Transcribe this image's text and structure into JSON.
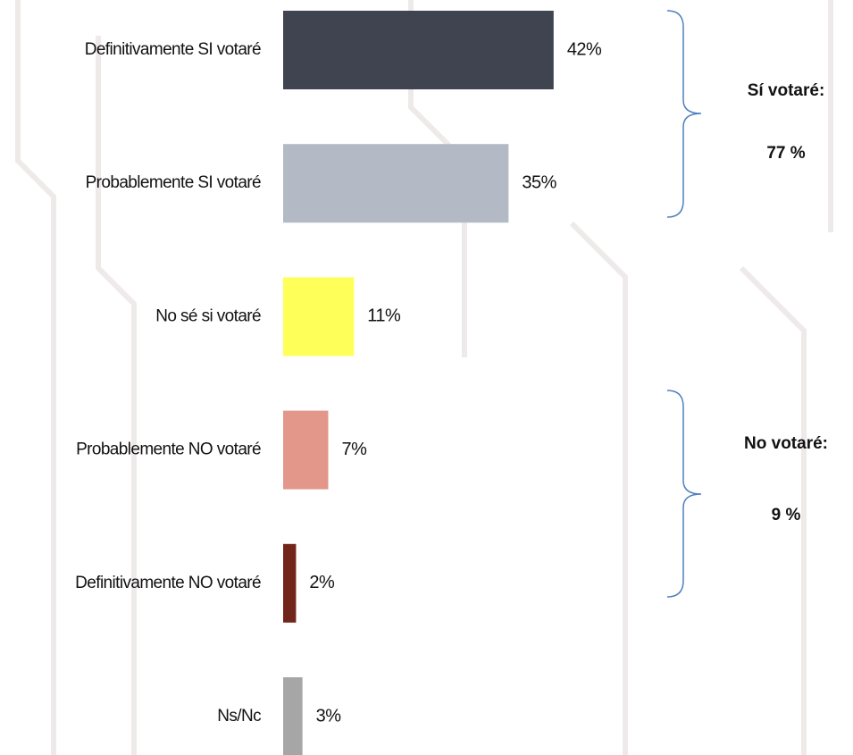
{
  "chart_data": {
    "type": "bar",
    "orientation": "horizontal",
    "categories": [
      "Definitivamente SI votaré",
      "Probablemente SI votaré",
      "No sé si votaré",
      "Probablemente NO votaré",
      "Definitivamente NO votaré",
      "Ns/Nc"
    ],
    "values": [
      42,
      35,
      11,
      7,
      2,
      3
    ],
    "value_labels": [
      "42%",
      "35%",
      "11%",
      "7%",
      "2%",
      "3%"
    ],
    "colors": [
      "#3f4450",
      "#b3bac5",
      "#ffff5a",
      "#e3978a",
      "#72261b",
      "#a6a6a6"
    ],
    "annotations": [
      "Sí votaré:",
      "77 %",
      "No votaré:",
      "9 %"
    ]
  }
}
